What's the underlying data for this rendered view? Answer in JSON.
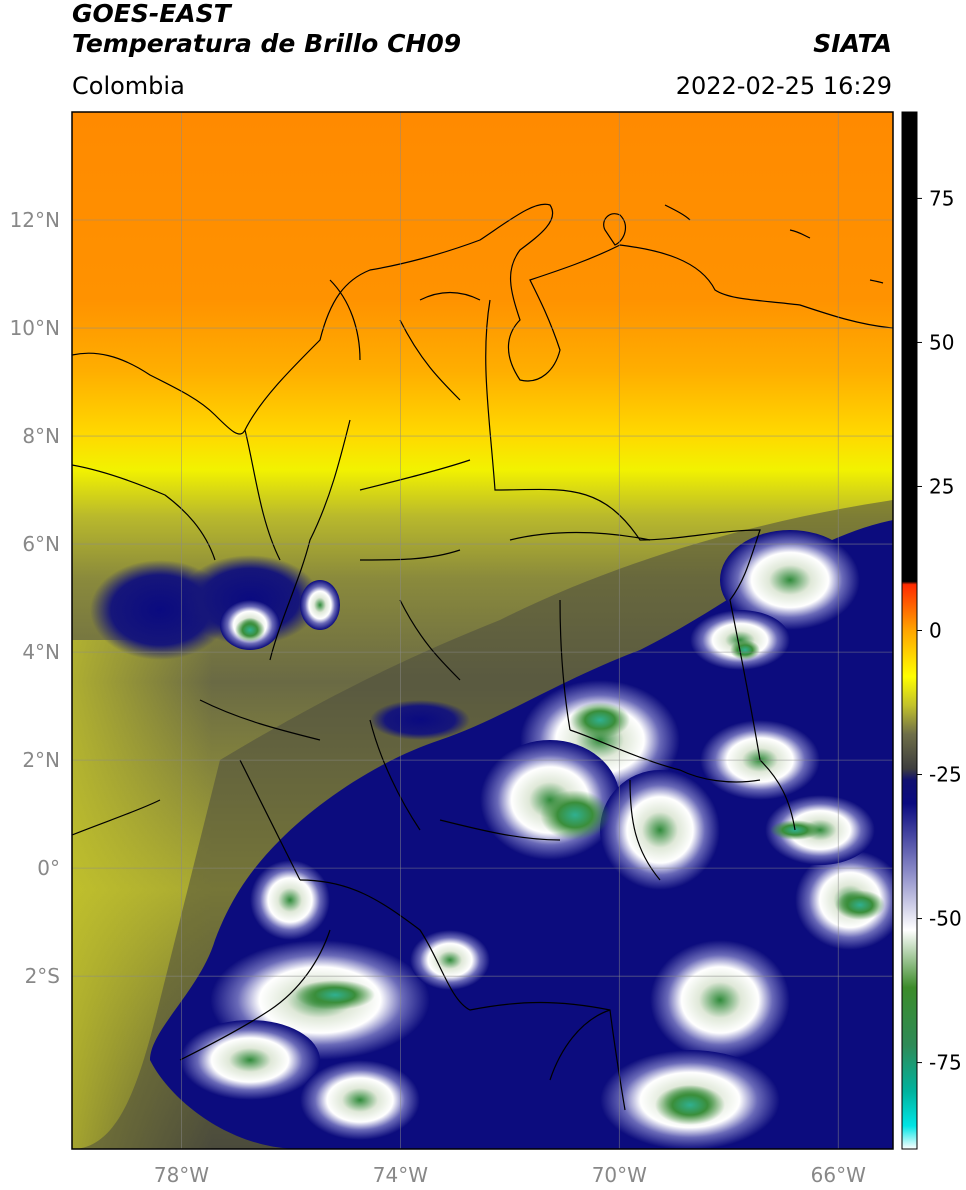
{
  "header": {
    "title_line1": "GOES-EAST",
    "title_line2": "Temperatura de Brillo CH09",
    "brand": "SIATA",
    "region": "Colombia",
    "datetime": "2022-02-25 16:29"
  },
  "map": {
    "lon_range": [
      -80,
      -65
    ],
    "lat_range": [
      -5.2,
      14
    ],
    "lat_ticks": [
      {
        "value": 12,
        "label": "12°N"
      },
      {
        "value": 10,
        "label": "10°N"
      },
      {
        "value": 8,
        "label": "8°N"
      },
      {
        "value": 6,
        "label": "6°N"
      },
      {
        "value": 4,
        "label": "4°N"
      },
      {
        "value": 2,
        "label": "2°N"
      },
      {
        "value": 0,
        "label": "0°"
      },
      {
        "value": -2,
        "label": "2°S"
      }
    ],
    "lon_ticks": [
      {
        "value": -78,
        "label": "78°W"
      },
      {
        "value": -74,
        "label": "74°W"
      },
      {
        "value": -70,
        "label": "70°W"
      },
      {
        "value": -66,
        "label": "66°W"
      }
    ]
  },
  "colorbar": {
    "range": [
      -90,
      90
    ],
    "ticks": [
      {
        "value": 75,
        "label": "75"
      },
      {
        "value": 50,
        "label": "50"
      },
      {
        "value": 25,
        "label": "25"
      },
      {
        "value": 0,
        "label": "0"
      },
      {
        "value": -25,
        "label": "-25"
      },
      {
        "value": -50,
        "label": "-50"
      },
      {
        "value": -75,
        "label": "-75"
      }
    ],
    "stops": [
      {
        "value": -90,
        "color": "#ffffff"
      },
      {
        "value": -86,
        "color": "#00e5e5"
      },
      {
        "value": -80,
        "color": "#00b39e"
      },
      {
        "value": -72,
        "color": "#2e8b57"
      },
      {
        "value": -62,
        "color": "#3c8c2a"
      },
      {
        "value": -52,
        "color": "#ffffff"
      },
      {
        "value": -42,
        "color": "#8c8cc8"
      },
      {
        "value": -30,
        "color": "#0a0a80"
      },
      {
        "value": -26,
        "color": "#101070"
      },
      {
        "value": -24,
        "color": "#3e3e3e"
      },
      {
        "value": -18,
        "color": "#6f6f48"
      },
      {
        "value": -13,
        "color": "#c2c22a"
      },
      {
        "value": -8,
        "color": "#ffff00"
      },
      {
        "value": 0,
        "color": "#ffa500"
      },
      {
        "value": 8,
        "color": "#ff2a00"
      },
      {
        "value": 8.5,
        "color": "#000000"
      },
      {
        "value": 90,
        "color": "#000000"
      }
    ]
  }
}
